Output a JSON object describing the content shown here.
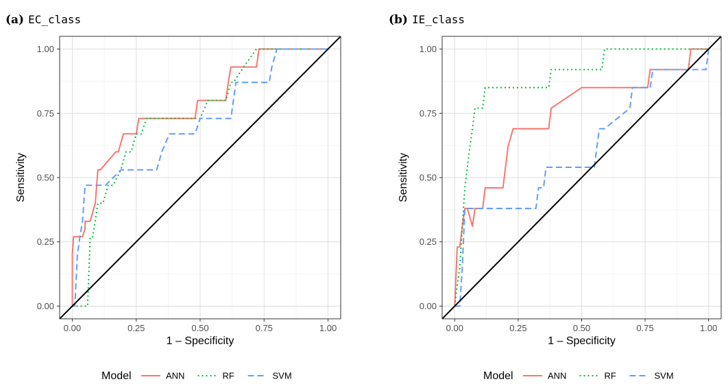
{
  "figure": {
    "legend_position": "bottom"
  },
  "chart_data": [
    {
      "type": "line",
      "panel_label": "(a)",
      "title": "EC_class",
      "xlabel": "1 – Specificity",
      "ylabel": "Sensitivity",
      "xlim": [
        0,
        1
      ],
      "ylim": [
        0,
        1
      ],
      "xticks": [
        "0.00",
        "0.25",
        "0.50",
        "0.75",
        "1.00"
      ],
      "yticks": [
        "0.00",
        "0.25",
        "0.50",
        "0.75",
        "1.00"
      ],
      "grid": true,
      "legend": {
        "title": "Model",
        "items": [
          {
            "label": "ANN",
            "color": "#F8766D",
            "dash": "solid"
          },
          {
            "label": "RF",
            "color": "#00BA38",
            "dash": "dotted"
          },
          {
            "label": "SVM",
            "color": "#619CFF",
            "dash": "dashed"
          }
        ]
      },
      "reference_line": {
        "from": [
          0,
          0
        ],
        "to": [
          1,
          1
        ],
        "color": "#000000"
      },
      "series": [
        {
          "name": "ANN",
          "color": "#F8766D",
          "dash": "solid",
          "x": [
            0,
            0,
            0.005,
            0.01,
            0.01,
            0.04,
            0.05,
            0.05,
            0.06,
            0.07,
            0.09,
            0.1,
            0.11,
            0.17,
            0.18,
            0.2,
            0.25,
            0.26,
            0.48,
            0.49,
            0.6,
            0.61,
            0.62,
            0.64,
            0.72,
            0.73,
            1
          ],
          "y": [
            0,
            0.2,
            0.27,
            0.27,
            0.27,
            0.27,
            0.3,
            0.33,
            0.33,
            0.33,
            0.4,
            0.53,
            0.53,
            0.6,
            0.6,
            0.67,
            0.67,
            0.73,
            0.73,
            0.8,
            0.8,
            0.87,
            0.93,
            0.93,
            0.93,
            1,
            1
          ]
        },
        {
          "name": "RF",
          "color": "#00BA38",
          "dash": "dotted",
          "x": [
            0,
            0.06,
            0.07,
            0.08,
            0.1,
            0.12,
            0.14,
            0.16,
            0.19,
            0.21,
            0.23,
            0.25,
            0.27,
            0.29,
            0.3,
            0.5,
            0.53,
            0.55,
            0.6,
            0.62,
            0.63,
            0.67,
            0.72,
            1
          ],
          "y": [
            0,
            0,
            0.27,
            0.27,
            0.4,
            0.4,
            0.47,
            0.47,
            0.53,
            0.6,
            0.6,
            0.67,
            0.67,
            0.73,
            0.73,
            0.73,
            0.8,
            0.8,
            0.8,
            0.87,
            0.87,
            0.93,
            1,
            1
          ]
        },
        {
          "name": "SVM",
          "color": "#619CFF",
          "dash": "dashed",
          "x": [
            0,
            0.01,
            0.02,
            0.03,
            0.04,
            0.05,
            0.13,
            0.19,
            0.33,
            0.35,
            0.38,
            0.48,
            0.5,
            0.62,
            0.64,
            0.7,
            0.77,
            0.78,
            0.8,
            1
          ],
          "y": [
            0,
            0,
            0.2,
            0.27,
            0.33,
            0.47,
            0.47,
            0.53,
            0.53,
            0.6,
            0.67,
            0.67,
            0.73,
            0.73,
            0.87,
            0.87,
            0.87,
            0.93,
            1,
            1
          ]
        }
      ]
    },
    {
      "type": "line",
      "panel_label": "(b)",
      "title": "IE_class",
      "xlabel": "1 – Specificity",
      "ylabel": "Sensitivity",
      "xlim": [
        0,
        1
      ],
      "ylim": [
        0,
        1
      ],
      "xticks": [
        "0.00",
        "0.25",
        "0.50",
        "0.75",
        "1.00"
      ],
      "yticks": [
        "0.00",
        "0.25",
        "0.50",
        "0.75",
        "1.00"
      ],
      "grid": true,
      "legend": {
        "title": "Model",
        "items": [
          {
            "label": "ANN",
            "color": "#F8766D",
            "dash": "solid"
          },
          {
            "label": "RF",
            "color": "#00BA38",
            "dash": "dotted"
          },
          {
            "label": "SVM",
            "color": "#619CFF",
            "dash": "dashed"
          }
        ]
      },
      "reference_line": {
        "from": [
          0,
          0
        ],
        "to": [
          1,
          1
        ],
        "color": "#000000"
      },
      "series": [
        {
          "name": "ANN",
          "color": "#F8766D",
          "dash": "solid",
          "x": [
            0,
            0.01,
            0.02,
            0.03,
            0.04,
            0.05,
            0.07,
            0.08,
            0.11,
            0.12,
            0.19,
            0.2,
            0.21,
            0.23,
            0.37,
            0.38,
            0.5,
            0.51,
            0.76,
            0.77,
            0.92,
            0.93,
            1
          ],
          "y": [
            0,
            0.23,
            0.23,
            0.31,
            0.38,
            0.38,
            0.31,
            0.38,
            0.38,
            0.46,
            0.46,
            0.54,
            0.62,
            0.69,
            0.69,
            0.77,
            0.85,
            0.85,
            0.85,
            0.92,
            0.92,
            1,
            1
          ]
        },
        {
          "name": "RF",
          "color": "#00BA38",
          "dash": "dotted",
          "x": [
            0,
            0.01,
            0.02,
            0.03,
            0.04,
            0.05,
            0.06,
            0.07,
            0.08,
            0.11,
            0.12,
            0.13,
            0.37,
            0.38,
            0.58,
            0.59,
            1
          ],
          "y": [
            0,
            0.08,
            0.15,
            0.31,
            0.46,
            0.54,
            0.62,
            0.69,
            0.77,
            0.77,
            0.85,
            0.85,
            0.85,
            0.92,
            0.92,
            1,
            1
          ]
        },
        {
          "name": "SVM",
          "color": "#619CFF",
          "dash": "dashed",
          "x": [
            0,
            0.02,
            0.03,
            0.04,
            0.05,
            0.08,
            0.12,
            0.32,
            0.33,
            0.35,
            0.36,
            0.55,
            0.56,
            0.57,
            0.59,
            0.69,
            0.7,
            0.77,
            0.78,
            0.99,
            1
          ],
          "y": [
            0,
            0,
            0.15,
            0.38,
            0.38,
            0.38,
            0.38,
            0.38,
            0.46,
            0.46,
            0.54,
            0.54,
            0.62,
            0.69,
            0.69,
            0.77,
            0.85,
            0.85,
            0.92,
            0.92,
            1
          ]
        }
      ]
    }
  ]
}
